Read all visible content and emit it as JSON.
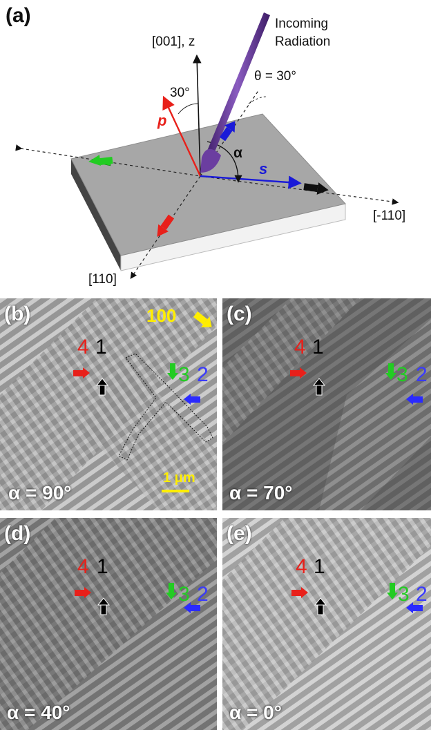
{
  "panel_a": {
    "label": "(a)",
    "axis_z": "[001], z",
    "incoming_line1": "Incoming",
    "incoming_line2": "Radiation",
    "theta": "θ = 30°",
    "angle_30": "30°",
    "p": "p",
    "s": "s",
    "alpha": "α",
    "dir_m110": "[-110]",
    "dir_110": "[110]"
  },
  "panels": [
    {
      "label": "(b)",
      "alpha": "α = 90°",
      "n4": "4",
      "n1": "1",
      "n3": "3",
      "n2": "2",
      "extra": "100",
      "scale": "1 μm"
    },
    {
      "label": "(c)",
      "alpha": "α = 70°",
      "n4": "4",
      "n1": "1",
      "n3": "3",
      "n2": "2"
    },
    {
      "label": "(d)",
      "alpha": "α = 40°",
      "n4": "4",
      "n1": "1",
      "n3": "3",
      "n2": "2"
    },
    {
      "label": "(e)",
      "alpha": "α = 0°",
      "n4": "4",
      "n1": "1",
      "n3": "3",
      "n2": "2"
    }
  ],
  "colors": {
    "red": "#e8201a",
    "green": "#22cc22",
    "blue": "#2a2aff",
    "black": "#000000",
    "yellow": "#ffee00",
    "purple": "#5a2a8a"
  }
}
